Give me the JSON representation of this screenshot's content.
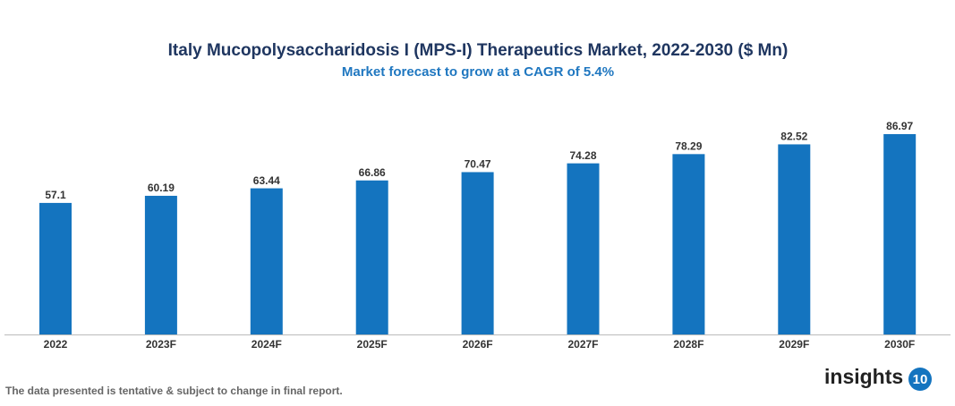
{
  "chart_data": {
    "type": "bar",
    "title": "Italy Mucopolysaccharidosis I (MPS-I) Therapeutics Market, 2022-2030 ($ Mn)",
    "subtitle": "Market forecast to grow at a CAGR of 5.4%",
    "categories": [
      "2022",
      "2023F",
      "2024F",
      "2025F",
      "2026F",
      "2027F",
      "2028F",
      "2029F",
      "2030F"
    ],
    "values": [
      57.1,
      60.19,
      63.44,
      66.86,
      70.47,
      74.28,
      78.29,
      82.52,
      86.97
    ],
    "color": "#1474bf"
  },
  "footer": {
    "note": "The data presented is tentative & subject to change in final report.",
    "brand": "insights",
    "badge": "10"
  }
}
